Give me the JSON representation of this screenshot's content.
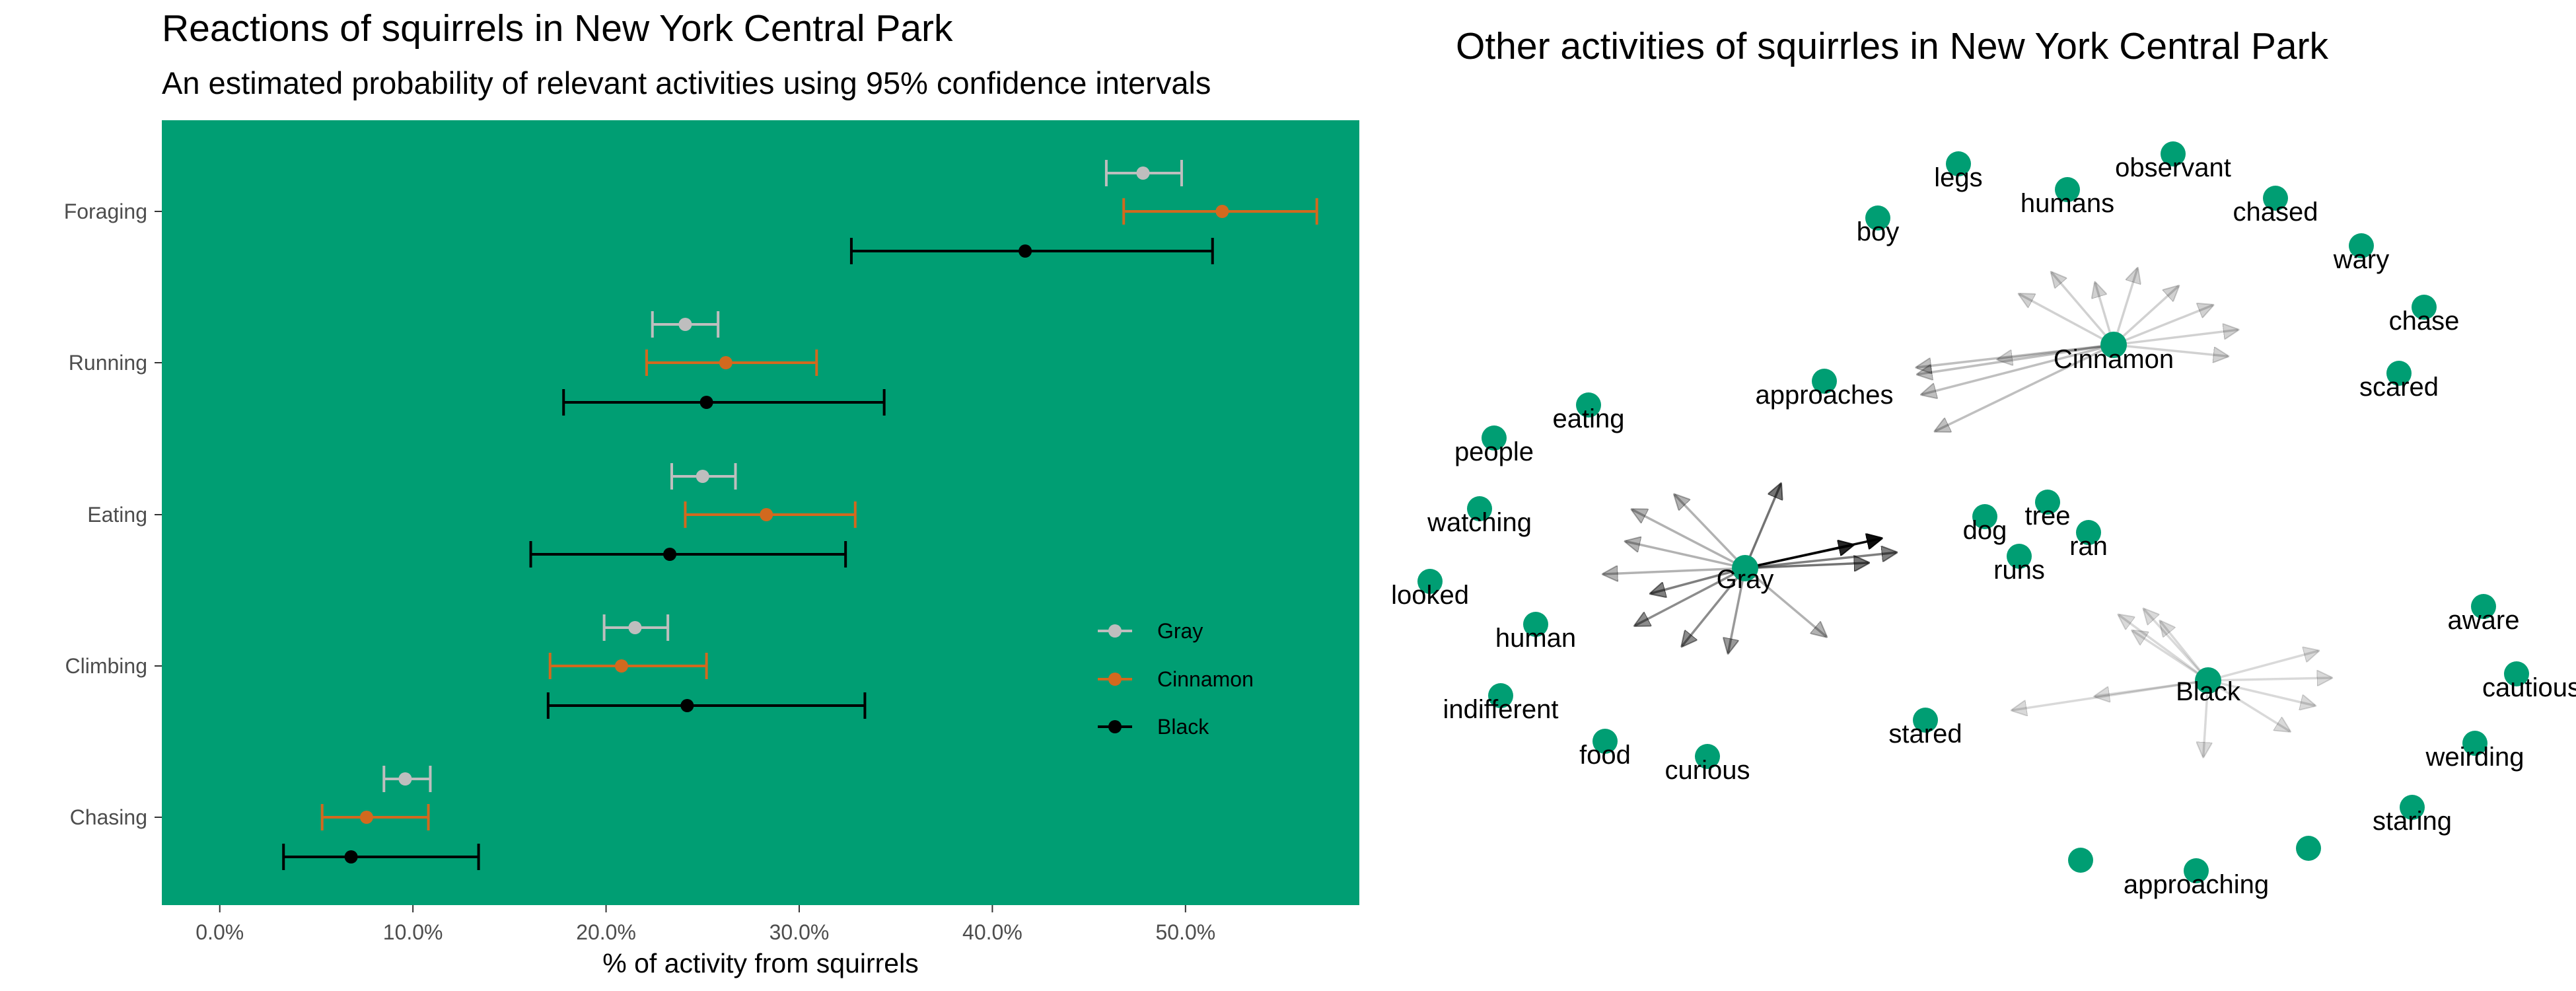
{
  "left_panel": {
    "title": "Reactions of squirrels in New York Central Park",
    "subtitle": "An estimated probability of relevant activities using 95% confidence intervals"
  },
  "right_panel": {
    "title": "Other activities of squirrles in New York Central Park"
  },
  "colors": {
    "panel_background": "#009E73",
    "Gray": "#BEBEBE",
    "Cinnamon": "#D2691E",
    "Black": "#000000",
    "node": "#009E73"
  },
  "chart_data": [
    {
      "type": "errorbar",
      "title": "Reactions of squirrels in New York Central Park",
      "subtitle": "An estimated probability of relevant activities using 95% confidence intervals",
      "xlabel": "% of activity from squirrels",
      "ylabel": "",
      "xlim": [
        -0.03,
        0.59
      ],
      "x_ticks": [
        0.0,
        0.1,
        0.2,
        0.3,
        0.4,
        0.5
      ],
      "x_tick_labels": [
        "0.0%",
        "10.0%",
        "20.0%",
        "30.0%",
        "40.0%",
        "50.0%"
      ],
      "categories": [
        "Foraging",
        "Running",
        "Eating",
        "Climbing",
        "Chasing"
      ],
      "grid": false,
      "legend_position": "right",
      "series": [
        {
          "name": "Gray",
          "estimates": [
            0.478,
            0.241,
            0.25,
            0.215,
            0.096
          ],
          "lower": [
            0.459,
            0.224,
            0.234,
            0.199,
            0.085
          ],
          "upper": [
            0.498,
            0.258,
            0.267,
            0.232,
            0.109
          ]
        },
        {
          "name": "Cinnamon",
          "estimates": [
            0.519,
            0.262,
            0.283,
            0.208,
            0.076
          ],
          "lower": [
            0.468,
            0.221,
            0.241,
            0.171,
            0.053
          ],
          "upper": [
            0.568,
            0.309,
            0.329,
            0.252,
            0.108
          ]
        },
        {
          "name": "Black",
          "estimates": [
            0.417,
            0.252,
            0.233,
            0.242,
            0.068
          ],
          "lower": [
            0.327,
            0.178,
            0.161,
            0.17,
            0.033
          ],
          "upper": [
            0.514,
            0.344,
            0.324,
            0.334,
            0.134
          ]
        }
      ]
    },
    {
      "type": "network",
      "title": "Other activities of squirrles in New York Central Park",
      "hubs": [
        {
          "name": "Cinnamon",
          "edges": [
            {
              "target": "wary",
              "opacity": 0.18
            },
            {
              "target": "chase",
              "opacity": 0.18
            },
            {
              "target": "scared",
              "opacity": 0.18
            },
            {
              "target": "chased",
              "opacity": 0.18
            },
            {
              "target": "observant",
              "opacity": 0.18
            },
            {
              "target": "humans",
              "opacity": 0.18
            },
            {
              "target": "legs",
              "opacity": 0.18
            },
            {
              "target": "boy",
              "opacity": 0.18
            },
            {
              "target": "approaches",
              "opacity": 0.18
            },
            {
              "target": "eating",
              "opacity": 0.25
            },
            {
              "target": "people",
              "opacity": 0.25
            },
            {
              "target": "watching",
              "opacity": 0.25
            },
            {
              "target": "human",
              "opacity": 0.25
            }
          ]
        },
        {
          "name": "Gray",
          "edges": [
            {
              "target": "dog",
              "opacity": 0.85
            },
            {
              "target": "tree",
              "opacity": 0.95
            },
            {
              "target": "runs",
              "opacity": 0.55
            },
            {
              "target": "ran",
              "opacity": 0.5
            },
            {
              "target": "eating",
              "opacity": 0.3
            },
            {
              "target": "people",
              "opacity": 0.3
            },
            {
              "target": "watching",
              "opacity": 0.3
            },
            {
              "target": "looked",
              "opacity": 0.3
            },
            {
              "target": "human",
              "opacity": 0.5
            },
            {
              "target": "indifferent",
              "opacity": 0.45
            },
            {
              "target": "food",
              "opacity": 0.45
            },
            {
              "target": "curious",
              "opacity": 0.4
            },
            {
              "target": "stared",
              "opacity": 0.3
            },
            {
              "target": "approaches",
              "opacity": 0.55
            }
          ]
        },
        {
          "name": "Black",
          "edges": [
            {
              "target": "aware",
              "opacity": 0.15
            },
            {
              "target": "cautiously",
              "opacity": 0.15
            },
            {
              "target": "weirding",
              "opacity": 0.15
            },
            {
              "target": "staring",
              "opacity": 0.15
            },
            {
              "target": "approaching",
              "opacity": 0.15
            },
            {
              "target": "curious",
              "opacity": 0.15
            },
            {
              "target": "stared",
              "opacity": 0.15
            },
            {
              "target": "runs",
              "opacity": 0.15
            },
            {
              "target": "ran",
              "opacity": 0.15
            },
            {
              "target": "tree",
              "opacity": 0.15
            },
            {
              "target": "dog",
              "opacity": 0.15
            }
          ]
        }
      ],
      "nodes": [
        "legs",
        "humans",
        "observant",
        "chased",
        "boy",
        "wary",
        "chase",
        "scared",
        "approaches",
        "eating",
        "people",
        "watching",
        "looked",
        "human",
        "indifferent",
        "food",
        "curious",
        "dog",
        "tree",
        "ran",
        "runs",
        "stared",
        "aware",
        "cautiously",
        "weirding",
        "staring",
        "approaching"
      ]
    }
  ]
}
